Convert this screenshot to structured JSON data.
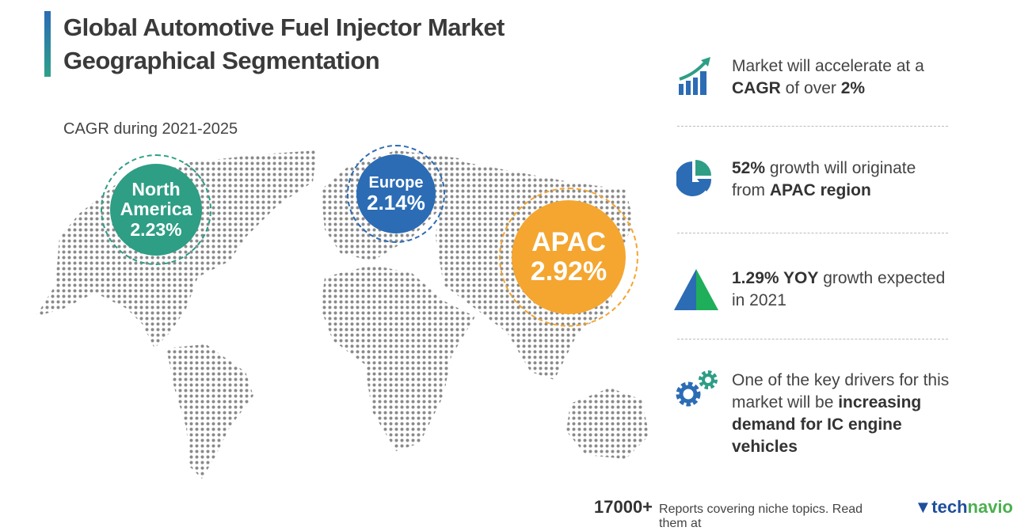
{
  "header": {
    "title_line1": "Global Automotive Fuel Injector Market",
    "title_line2": "Geographical Segmentation",
    "subtitle": "CAGR during 2021-2025"
  },
  "regions": [
    {
      "name_line1": "North",
      "name_line2": "America",
      "cagr": "2.23%",
      "color": "#2e9e85"
    },
    {
      "name_line1": "Europe",
      "cagr": "2.14%",
      "color": "#2b6cb5"
    },
    {
      "name_line1": "APAC",
      "cagr": "2.92%",
      "color": "#f4a630"
    }
  ],
  "highlights": [
    {
      "icon": "growth-chart-icon",
      "t1": "Market will accelerate at a ",
      "b1": "CAGR",
      "t2": " of over ",
      "b2": "2%"
    },
    {
      "icon": "pie-chart-icon",
      "b1": "52%",
      "t1": " growth will originate from ",
      "b2": "APAC region"
    },
    {
      "icon": "triangle-icon",
      "b1": "1.29% YOY",
      "t1": " growth expected in 2021"
    },
    {
      "icon": "gears-icon",
      "t1": "One of the key drivers for this market will be ",
      "b1": "increasing demand for IC engine vehicles"
    }
  ],
  "footer": {
    "count": "17000+",
    "text": "Reports covering niche topics. Read them at",
    "logo_a": "tech",
    "logo_b": "navio"
  },
  "colors": {
    "dots": "#8a8a8a",
    "blue": "#2b6cb5",
    "teal": "#2e9e85",
    "orange": "#f4a630"
  }
}
